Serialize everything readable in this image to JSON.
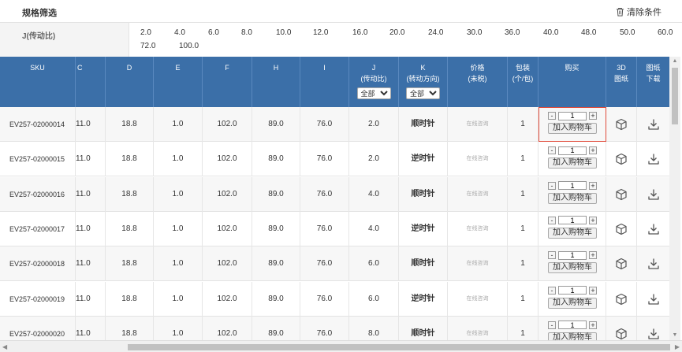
{
  "filter_bar": {
    "title": "规格筛选",
    "clear_label": "清除条件"
  },
  "filter": {
    "label": "J(传动比)",
    "options": [
      "2.0",
      "4.0",
      "6.0",
      "8.0",
      "10.0",
      "12.0",
      "16.0",
      "20.0",
      "24.0",
      "30.0",
      "36.0",
      "40.0",
      "48.0",
      "50.0",
      "60.0",
      "72.0",
      "100.0"
    ]
  },
  "table": {
    "headers": {
      "sku": "SKU",
      "c": "C",
      "d": "D",
      "e": "E",
      "f": "F",
      "h": "H",
      "i": "I",
      "j": "J",
      "j_sub": "(传动比)",
      "k": "K",
      "k_sub": "(转动方向)",
      "price": "价格",
      "price_sub": "(未税)",
      "pack": "包装",
      "pack_sub": "(个/包)",
      "buy": "购买",
      "cad": "3D",
      "cad_sub": "图纸",
      "drawing": "图纸",
      "drawing_sub": "下载"
    },
    "j_filter_value": "全部",
    "k_filter_value": "全部",
    "rows": [
      {
        "sku": "EV257-02000014",
        "c": "11.0",
        "d": "18.8",
        "e": "1.0",
        "f": "102.0",
        "h": "89.0",
        "i": "76.0",
        "j": "2.0",
        "k": "顺时针",
        "price": "在线咨询",
        "pack": "1",
        "qty": "1",
        "cart": "加入购物车"
      },
      {
        "sku": "EV257-02000015",
        "c": "11.0",
        "d": "18.8",
        "e": "1.0",
        "f": "102.0",
        "h": "89.0",
        "i": "76.0",
        "j": "2.0",
        "k": "逆时针",
        "price": "在线咨询",
        "pack": "1",
        "qty": "1",
        "cart": "加入购物车"
      },
      {
        "sku": "EV257-02000016",
        "c": "11.0",
        "d": "18.8",
        "e": "1.0",
        "f": "102.0",
        "h": "89.0",
        "i": "76.0",
        "j": "4.0",
        "k": "顺时针",
        "price": "在线咨询",
        "pack": "1",
        "qty": "1",
        "cart": "加入购物车"
      },
      {
        "sku": "EV257-02000017",
        "c": "11.0",
        "d": "18.8",
        "e": "1.0",
        "f": "102.0",
        "h": "89.0",
        "i": "76.0",
        "j": "4.0",
        "k": "逆时针",
        "price": "在线咨询",
        "pack": "1",
        "qty": "1",
        "cart": "加入购物车"
      },
      {
        "sku": "EV257-02000018",
        "c": "11.0",
        "d": "18.8",
        "e": "1.0",
        "f": "102.0",
        "h": "89.0",
        "i": "76.0",
        "j": "6.0",
        "k": "顺时针",
        "price": "在线咨询",
        "pack": "1",
        "qty": "1",
        "cart": "加入购物车"
      },
      {
        "sku": "EV257-02000019",
        "c": "11.0",
        "d": "18.8",
        "e": "1.0",
        "f": "102.0",
        "h": "89.0",
        "i": "76.0",
        "j": "6.0",
        "k": "逆时针",
        "price": "在线咨询",
        "pack": "1",
        "qty": "1",
        "cart": "加入购物车"
      },
      {
        "sku": "EV257-02000020",
        "c": "11.0",
        "d": "18.8",
        "e": "1.0",
        "f": "102.0",
        "h": "89.0",
        "i": "76.0",
        "j": "8.0",
        "k": "顺时针",
        "price": "在线咨询",
        "pack": "1",
        "qty": "1",
        "cart": "加入购物车"
      }
    ]
  },
  "icons": {
    "trash": "trash-icon",
    "cube": "cube-3d-icon",
    "download": "download-icon"
  },
  "colors": {
    "header_bg": "#3b6fa8",
    "highlight": "#e04b3b"
  }
}
